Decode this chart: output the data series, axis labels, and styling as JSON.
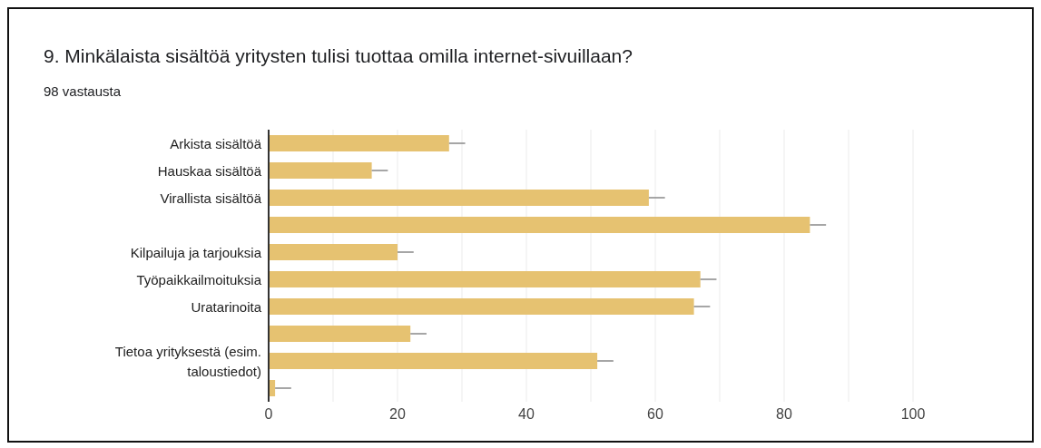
{
  "chart_data": {
    "type": "bar",
    "orientation": "horizontal",
    "title": "9. Minkälaista sisältöä yritysten tulisi tuottaa omilla internet-sivuillaan?",
    "subtitle": "98 vastausta",
    "categories": [
      "Arkista sisältöä",
      "Hauskaa sisältöä",
      "Virallista sisältöä",
      null,
      "Kilpailuja ja tarjouksia",
      "Työpaikkailmoituksia",
      "Uratarinoita",
      null,
      "Tietoa yrityksestä (esim. taloustiedot)",
      null
    ],
    "values": [
      28,
      16,
      59,
      84,
      20,
      67,
      66,
      22,
      51,
      1
    ],
    "errors": [
      [
        28,
        30.5
      ],
      [
        16,
        18.5
      ],
      [
        59,
        61.5
      ],
      [
        84,
        86.5
      ],
      [
        20,
        22.5
      ],
      [
        67,
        69.5
      ],
      [
        66,
        68.5
      ],
      [
        22,
        24.5
      ],
      [
        51,
        53.5
      ],
      [
        1,
        3.5
      ]
    ],
    "color": "#e6c271",
    "xlim": [
      0,
      100
    ],
    "xticks": [
      0,
      {
        "value": 10,
        "label": null
      },
      20,
      {
        "value": 30,
        "label": null
      },
      40,
      {
        "value": 50,
        "label": null
      },
      60,
      {
        "value": 70,
        "label": null
      },
      80,
      {
        "value": 90,
        "label": null
      },
      100
    ],
    "grid": "x"
  }
}
